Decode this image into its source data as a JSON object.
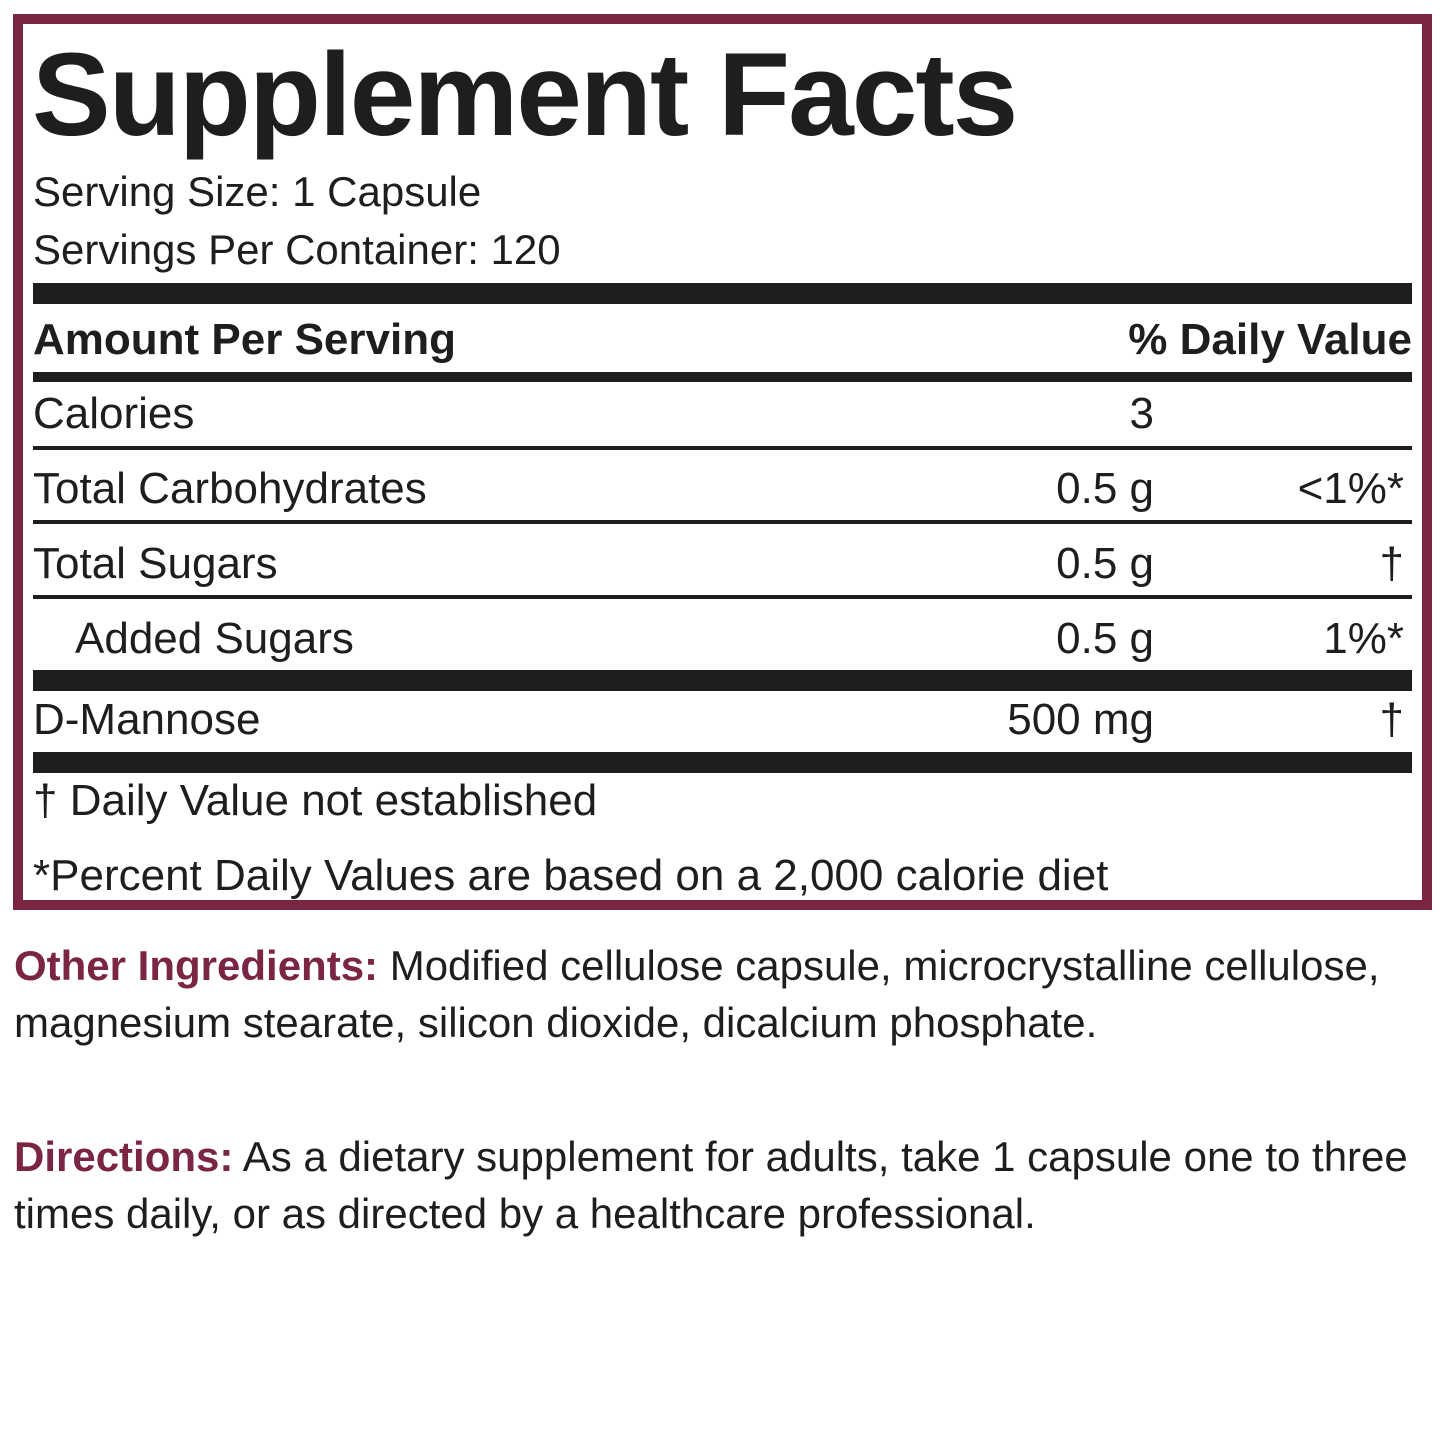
{
  "colors": {
    "accent": "#7a2541",
    "text": "#1e1e1e"
  },
  "panel": {
    "title": "Supplement Facts",
    "serving_size": "Serving Size: 1 Capsule",
    "servings_per_container": "Servings Per Container: 120",
    "header": {
      "amount": "Amount Per Serving",
      "daily_value": "% Daily Value"
    },
    "rows": [
      {
        "name": "Calories",
        "amount": "3",
        "dv": ""
      },
      {
        "name": "Total Carbohydrates",
        "amount": "0.5 g",
        "dv": "<1%*"
      },
      {
        "name": "Total Sugars",
        "amount": "0.5 g",
        "dv": "†"
      },
      {
        "name": "Added Sugars",
        "amount": "0.5 g",
        "dv": "1%*"
      },
      {
        "name": "D-Mannose",
        "amount": "500 mg",
        "dv": "†"
      }
    ],
    "footnote_dagger": "† Daily Value not established",
    "footnote_percent": "*Percent Daily Values are based on a 2,000 calorie diet"
  },
  "other_ingredients": {
    "label": "Other Ingredients:",
    "text": " Modified cellulose capsule, microcrystalline cellulose, magnesium stearate, silicon dioxide, dicalcium phosphate."
  },
  "directions": {
    "label": "Directions:",
    "text": " As a dietary supplement for adults, take 1 capsule one to three times daily, or as directed by a healthcare professional."
  }
}
